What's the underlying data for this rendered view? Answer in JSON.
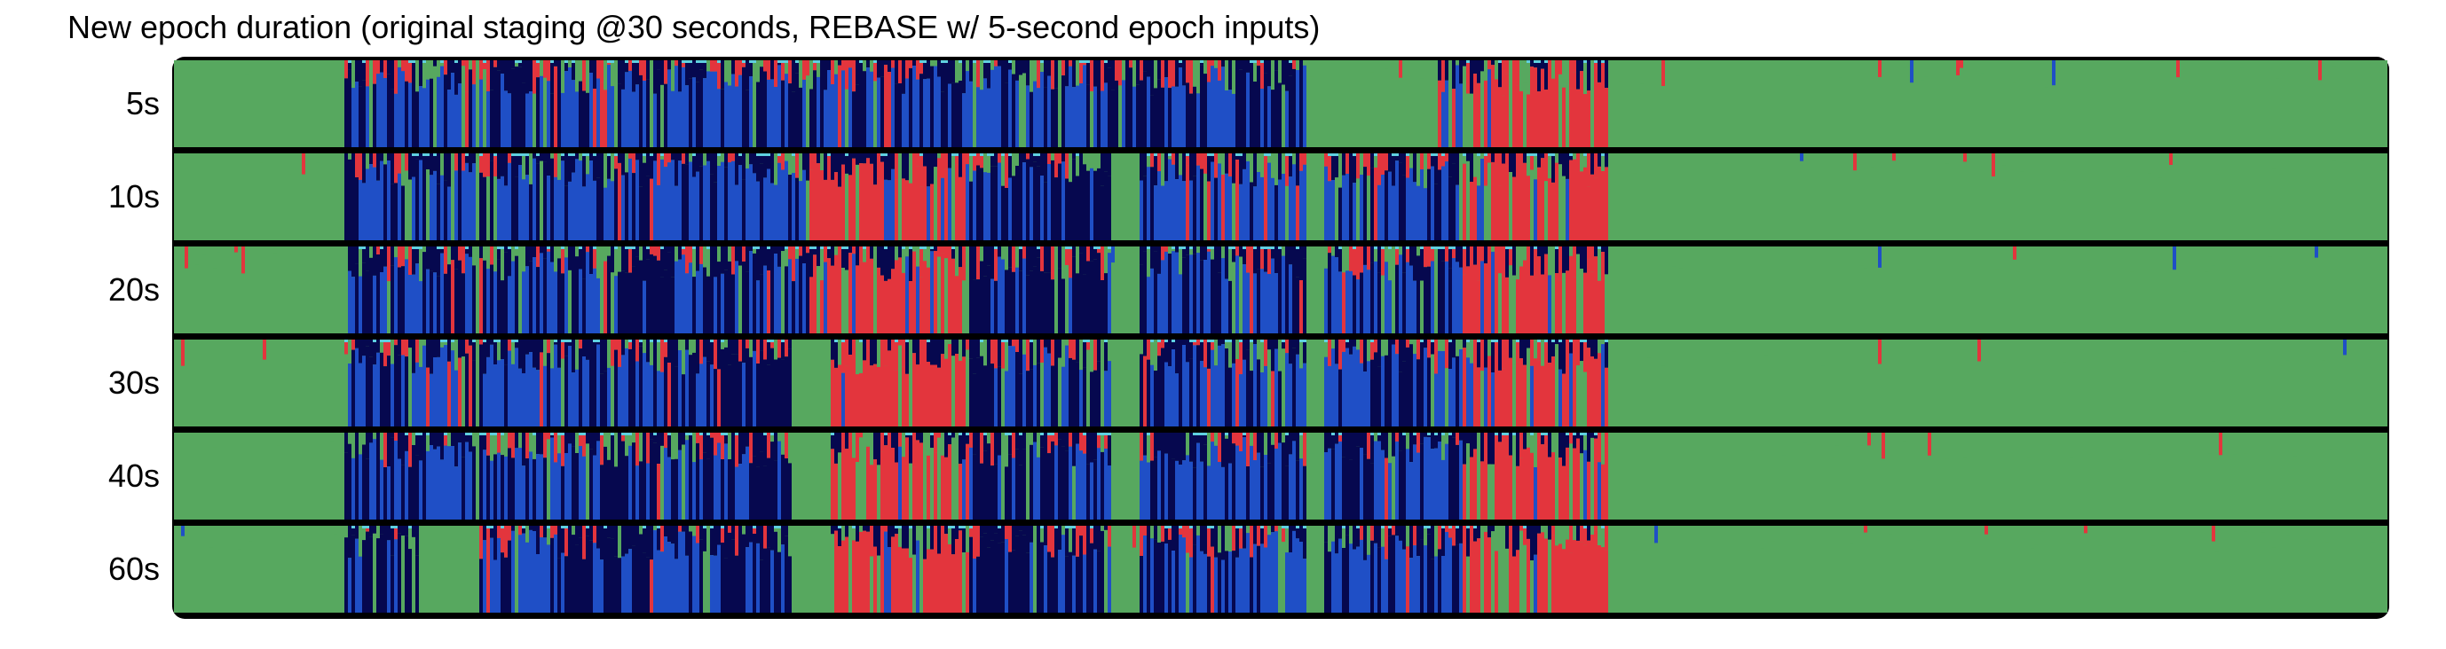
{
  "chart_data": {
    "type": "heatmap",
    "title": "New epoch duration (original staging @30 seconds, REBASE w/ 5-second epoch inputs)",
    "xlabel": "",
    "ylabel": "",
    "rows": [
      "5s",
      "10s",
      "20s",
      "30s",
      "40s",
      "60s"
    ],
    "x_range": [
      0,
      1
    ],
    "colors": {
      "green": "#57a85f",
      "blue": "#1f4fc6",
      "navy": "#06084f",
      "red": "#e3353d",
      "cyan": "#5fd0e0",
      "frame": "#000000"
    },
    "color_order": [
      "navy",
      "blue",
      "red",
      "green"
    ],
    "dominant_segments": [
      [
        [
          "green",
          0.0,
          0.076
        ],
        [
          "blue",
          0.076,
          0.135
        ],
        [
          "green",
          0.135,
          0.138
        ],
        [
          "blue",
          0.138,
          0.223
        ],
        [
          "blue",
          0.223,
          0.287
        ],
        [
          "blue",
          0.287,
          0.42
        ],
        [
          "navy",
          0.42,
          0.445
        ],
        [
          "blue",
          0.445,
          0.512
        ],
        [
          "green",
          0.512,
          0.57
        ],
        [
          "blue",
          0.57,
          0.582
        ],
        [
          "red",
          0.582,
          0.648
        ],
        [
          "green",
          0.648,
          1.0
        ]
      ],
      [
        [
          "green",
          0.0,
          0.076
        ],
        [
          "blue",
          0.076,
          0.135
        ],
        [
          "green",
          0.135,
          0.138
        ],
        [
          "blue",
          0.138,
          0.223
        ],
        [
          "blue",
          0.223,
          0.287
        ],
        [
          "red",
          0.287,
          0.358
        ],
        [
          "navy",
          0.358,
          0.423
        ],
        [
          "green",
          0.423,
          0.436
        ],
        [
          "blue",
          0.436,
          0.512
        ],
        [
          "green",
          0.512,
          0.52
        ],
        [
          "blue",
          0.52,
          0.582
        ],
        [
          "red",
          0.582,
          0.648
        ],
        [
          "green",
          0.648,
          1.0
        ]
      ],
      [
        [
          "green",
          0.0,
          0.076
        ],
        [
          "blue",
          0.076,
          0.135
        ],
        [
          "green",
          0.135,
          0.138
        ],
        [
          "blue",
          0.138,
          0.212
        ],
        [
          "navy",
          0.212,
          0.22
        ],
        [
          "blue",
          0.22,
          0.287
        ],
        [
          "red",
          0.287,
          0.358
        ],
        [
          "navy",
          0.358,
          0.423
        ],
        [
          "green",
          0.423,
          0.436
        ],
        [
          "blue",
          0.436,
          0.512
        ],
        [
          "green",
          0.512,
          0.52
        ],
        [
          "blue",
          0.52,
          0.582
        ],
        [
          "red",
          0.582,
          0.648
        ],
        [
          "green",
          0.648,
          1.0
        ]
      ],
      [
        [
          "green",
          0.0,
          0.076
        ],
        [
          "blue",
          0.076,
          0.135
        ],
        [
          "green",
          0.135,
          0.138
        ],
        [
          "blue",
          0.138,
          0.192
        ],
        [
          "navy",
          0.192,
          0.212
        ],
        [
          "blue",
          0.212,
          0.247
        ],
        [
          "navy",
          0.247,
          0.278
        ],
        [
          "green",
          0.278,
          0.296
        ],
        [
          "red",
          0.296,
          0.358
        ],
        [
          "navy",
          0.358,
          0.423
        ],
        [
          "green",
          0.423,
          0.436
        ],
        [
          "blue",
          0.436,
          0.512
        ],
        [
          "green",
          0.512,
          0.52
        ],
        [
          "blue",
          0.52,
          0.582
        ],
        [
          "red",
          0.582,
          0.648
        ],
        [
          "green",
          0.648,
          1.0
        ]
      ],
      [
        [
          "green",
          0.0,
          0.076
        ],
        [
          "navy",
          0.076,
          0.098
        ],
        [
          "blue",
          0.098,
          0.135
        ],
        [
          "green",
          0.135,
          0.138
        ],
        [
          "blue",
          0.138,
          0.192
        ],
        [
          "navy",
          0.192,
          0.212
        ],
        [
          "blue",
          0.212,
          0.247
        ],
        [
          "navy",
          0.247,
          0.278
        ],
        [
          "green",
          0.278,
          0.296
        ],
        [
          "red",
          0.296,
          0.358
        ],
        [
          "navy",
          0.358,
          0.423
        ],
        [
          "green",
          0.423,
          0.436
        ],
        [
          "blue",
          0.436,
          0.512
        ],
        [
          "green",
          0.512,
          0.52
        ],
        [
          "blue",
          0.52,
          0.582
        ],
        [
          "red",
          0.582,
          0.648
        ],
        [
          "green",
          0.648,
          1.0
        ]
      ],
      [
        [
          "green",
          0.0,
          0.076
        ],
        [
          "navy",
          0.076,
          0.098
        ],
        [
          "blue",
          0.098,
          0.11
        ],
        [
          "green",
          0.11,
          0.138
        ],
        [
          "blue",
          0.138,
          0.176
        ],
        [
          "navy",
          0.176,
          0.212
        ],
        [
          "blue",
          0.212,
          0.247
        ],
        [
          "navy",
          0.247,
          0.278
        ],
        [
          "green",
          0.278,
          0.296
        ],
        [
          "red",
          0.296,
          0.358
        ],
        [
          "navy",
          0.358,
          0.423
        ],
        [
          "green",
          0.423,
          0.436
        ],
        [
          "blue",
          0.436,
          0.512
        ],
        [
          "green",
          0.512,
          0.52
        ],
        [
          "blue",
          0.52,
          0.582
        ],
        [
          "red",
          0.582,
          0.648
        ],
        [
          "green",
          0.648,
          1.0
        ]
      ]
    ]
  }
}
